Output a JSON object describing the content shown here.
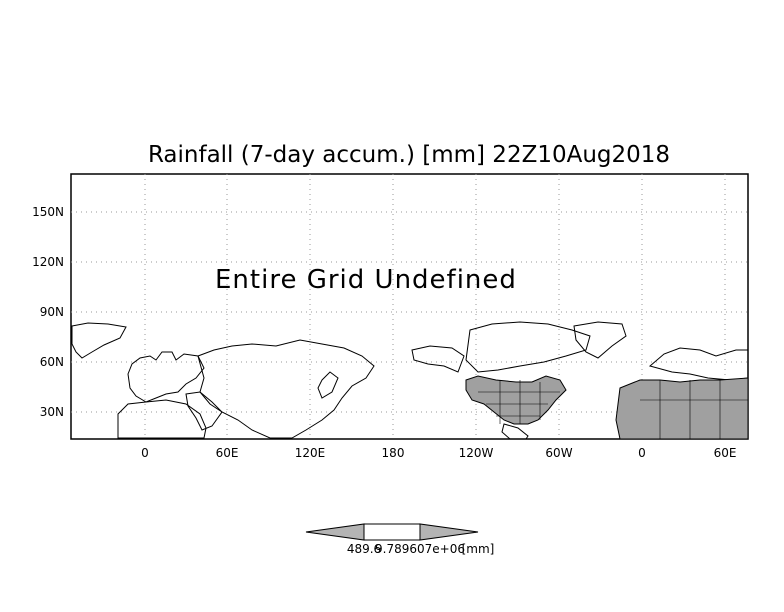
{
  "map": {
    "title": "Rainfall (7-day accum.) [mm] 22Z10Aug2018",
    "message": "Entire Grid Undefined",
    "lat_labels": [
      "150N",
      "120N",
      "90N",
      "60N",
      "30N"
    ],
    "lon_labels": [
      "0",
      "60E",
      "120E",
      "180",
      "120W",
      "60W",
      "0",
      "60E"
    ],
    "colors": {
      "frame": "#000000",
      "grid": "#999999",
      "land_fill": "#a0a0a0",
      "background": "#ffffff"
    }
  },
  "colorbar": {
    "left_value": "489.6",
    "center_value": "9.789607e+06",
    "units": "[mm]",
    "colors": {
      "end_triangles": "#b4b4b4",
      "middle_box": "#ffffff"
    }
  }
}
